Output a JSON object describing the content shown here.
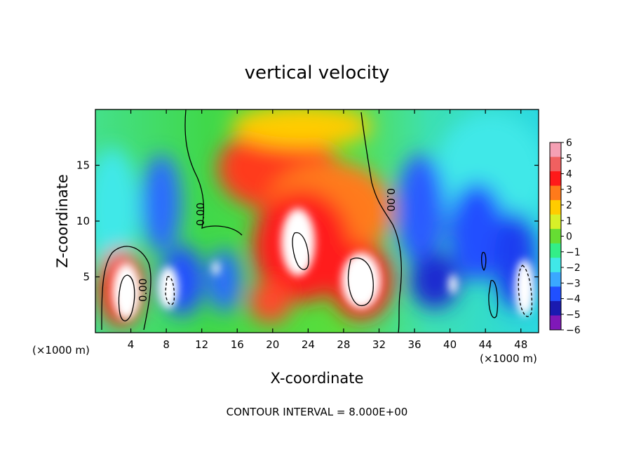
{
  "chart_data": {
    "type": "heatmap",
    "title": "vertical velocity",
    "xlabel": "X-coordinate",
    "ylabel": "Z-coordinate",
    "x_unit_label": "(×1000 m)",
    "x_unit_label_secondary": "(×1000 m)",
    "xlim": [
      0,
      50
    ],
    "ylim": [
      0,
      20
    ],
    "x_ticks": [
      4,
      8,
      12,
      16,
      20,
      24,
      28,
      32,
      36,
      40,
      44,
      48
    ],
    "y_ticks": [
      5,
      10,
      15
    ],
    "colorbar": {
      "min": -6,
      "max": 6,
      "ticks": [
        "6",
        "5",
        "4",
        "3",
        "2",
        "1",
        "0",
        "−1",
        "−2",
        "−3",
        "−4",
        "−5",
        "−6"
      ],
      "tick_values": [
        6,
        5,
        4,
        3,
        2,
        1,
        0,
        -1,
        -2,
        -3,
        -4,
        -5,
        -6
      ],
      "colors": [
        "#f5a0b4",
        "#f06060",
        "#ff1a1a",
        "#ff7a1a",
        "#ffcc00",
        "#d8f028",
        "#66dd33",
        "#33ee88",
        "#40e8e8",
        "#3aa8ff",
        "#2050ff",
        "#1a1ab0",
        "#7f18b8"
      ],
      "over_color": "#ffffff"
    },
    "contour_labels": [
      "0.00",
      "0.00",
      "0.00"
    ],
    "contour_interval_text": "CONTOUR INTERVAL = 8.000E+00",
    "features": [
      {
        "kind": "updraft_core",
        "x": 3.5,
        "z": 3.5,
        "peak": 8
      },
      {
        "kind": "updraft_core",
        "x": 22.5,
        "z": 8.5,
        "peak": 8
      },
      {
        "kind": "updraft_core",
        "x": 29.5,
        "z": 5.5,
        "peak": 8
      },
      {
        "kind": "updraft_band",
        "x": 19,
        "z": 14,
        "peak": 5
      },
      {
        "kind": "updraft_band",
        "x": 26,
        "z": 11,
        "peak": 4
      },
      {
        "kind": "downdraft",
        "x": 7.5,
        "z": 9,
        "peak": -4
      },
      {
        "kind": "downdraft",
        "x": 38,
        "z": 10,
        "peak": -4
      },
      {
        "kind": "downdraft",
        "x": 46,
        "z": 8,
        "peak": -5
      },
      {
        "kind": "strong_updraft_patch",
        "x": 48.5,
        "z": 3.5,
        "peak": 7
      },
      {
        "kind": "strong_updraft_patch",
        "x": 7.5,
        "z": 4,
        "peak": 7
      }
    ]
  }
}
